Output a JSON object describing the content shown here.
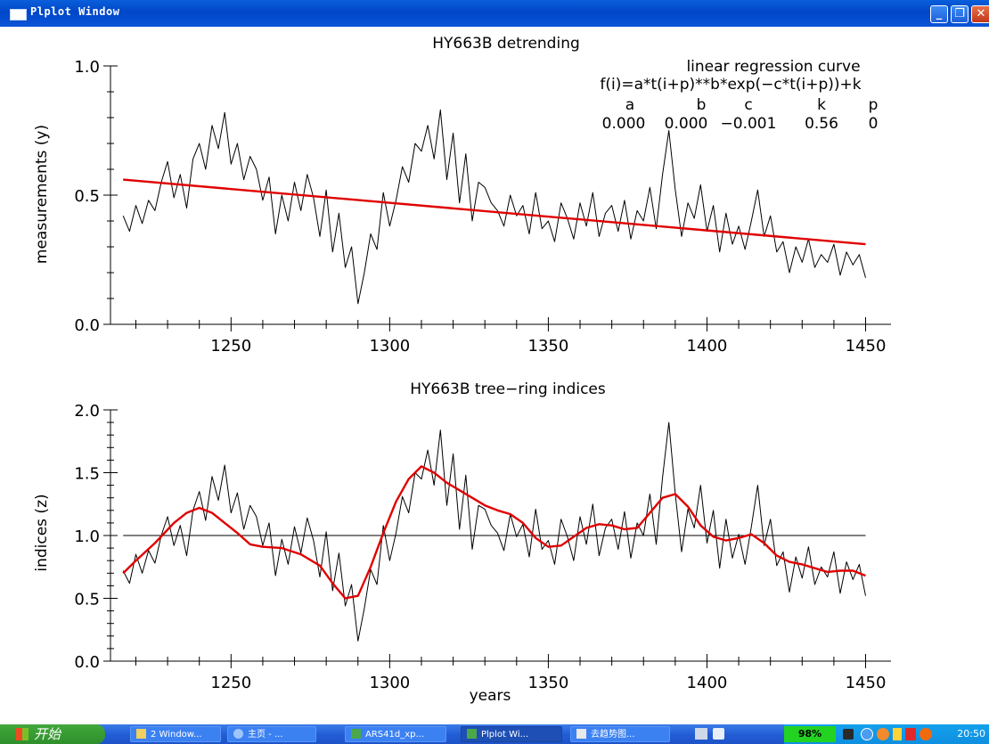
{
  "window": {
    "title": "Plplot Window",
    "buttons": {
      "minimize": "_",
      "maximize": "❐",
      "close": "✕"
    }
  },
  "chart_data": [
    {
      "type": "line",
      "title": "HY663B detrending",
      "xlabel": "",
      "ylabel": "measurements (y)",
      "xlim": [
        1212,
        1458
      ],
      "ylim": [
        0.0,
        1.0
      ],
      "xticks": [
        1250,
        1300,
        1350,
        1400,
        1450
      ],
      "yticks": [
        "0.0",
        "0.5",
        "1.0"
      ],
      "annotation": {
        "line1": "linear regression curve",
        "line2": "f(i)=a*t(i+p)**b*exp(−c*t(i+p))+k",
        "headers": [
          "a",
          "b",
          "c",
          "k",
          "p"
        ],
        "values": [
          "0.000",
          "0.000",
          "−0.001",
          "0.56",
          "0"
        ]
      },
      "series": [
        {
          "color": "#000000",
          "x": [
            1216,
            1218,
            1220,
            1222,
            1224,
            1226,
            1228,
            1230,
            1232,
            1234,
            1236,
            1238,
            1240,
            1242,
            1244,
            1246,
            1248,
            1250,
            1252,
            1254,
            1256,
            1258,
            1260,
            1262,
            1264,
            1266,
            1268,
            1270,
            1272,
            1274,
            1276,
            1278,
            1280,
            1282,
            1284,
            1286,
            1288,
            1290,
            1292,
            1294,
            1296,
            1298,
            1300,
            1302,
            1304,
            1306,
            1308,
            1310,
            1312,
            1314,
            1316,
            1318,
            1320,
            1322,
            1324,
            1326,
            1328,
            1330,
            1332,
            1334,
            1336,
            1338,
            1340,
            1342,
            1344,
            1346,
            1348,
            1350,
            1352,
            1354,
            1356,
            1358,
            1360,
            1362,
            1364,
            1366,
            1368,
            1370,
            1372,
            1374,
            1376,
            1378,
            1380,
            1382,
            1384,
            1386,
            1388,
            1390,
            1392,
            1394,
            1396,
            1398,
            1400,
            1402,
            1404,
            1406,
            1408,
            1410,
            1412,
            1414,
            1416,
            1418,
            1420,
            1422,
            1424,
            1426,
            1428,
            1430,
            1432,
            1434,
            1436,
            1438,
            1440,
            1442,
            1444,
            1446,
            1448,
            1450
          ],
          "y": [
            0.42,
            0.36,
            0.46,
            0.39,
            0.48,
            0.44,
            0.55,
            0.63,
            0.49,
            0.58,
            0.45,
            0.64,
            0.7,
            0.6,
            0.77,
            0.68,
            0.82,
            0.62,
            0.7,
            0.56,
            0.65,
            0.6,
            0.48,
            0.57,
            0.35,
            0.5,
            0.4,
            0.55,
            0.44,
            0.58,
            0.49,
            0.34,
            0.52,
            0.28,
            0.43,
            0.22,
            0.3,
            0.08,
            0.2,
            0.35,
            0.29,
            0.51,
            0.38,
            0.48,
            0.61,
            0.55,
            0.7,
            0.67,
            0.77,
            0.64,
            0.83,
            0.56,
            0.74,
            0.47,
            0.66,
            0.4,
            0.55,
            0.53,
            0.47,
            0.44,
            0.38,
            0.5,
            0.42,
            0.46,
            0.35,
            0.51,
            0.37,
            0.4,
            0.32,
            0.47,
            0.41,
            0.33,
            0.47,
            0.38,
            0.51,
            0.34,
            0.43,
            0.46,
            0.36,
            0.48,
            0.33,
            0.44,
            0.4,
            0.53,
            0.37,
            0.58,
            0.75,
            0.52,
            0.34,
            0.47,
            0.41,
            0.54,
            0.36,
            0.46,
            0.28,
            0.43,
            0.31,
            0.38,
            0.29,
            0.4,
            0.52,
            0.34,
            0.42,
            0.28,
            0.32,
            0.2,
            0.3,
            0.24,
            0.33,
            0.22,
            0.27,
            0.24,
            0.31,
            0.19,
            0.28,
            0.23,
            0.27,
            0.18
          ]
        },
        {
          "color": "#e00000",
          "x": [
            1216,
            1450
          ],
          "y": [
            0.56,
            0.31
          ]
        }
      ]
    },
    {
      "type": "line",
      "title": "HY663B tree−ring indices",
      "xlabel": "years",
      "ylabel": "indices (z)",
      "xlim": [
        1212,
        1458
      ],
      "ylim": [
        0.0,
        2.0
      ],
      "xticks": [
        1250,
        1300,
        1350,
        1400,
        1450
      ],
      "yticks": [
        "0.0",
        "0.5",
        "1.0",
        "1.5",
        "2.0"
      ],
      "reference_line": 1.0,
      "series": [
        {
          "color": "#000000",
          "x": [
            1216,
            1218,
            1220,
            1222,
            1224,
            1226,
            1228,
            1230,
            1232,
            1234,
            1236,
            1238,
            1240,
            1242,
            1244,
            1246,
            1248,
            1250,
            1252,
            1254,
            1256,
            1258,
            1260,
            1262,
            1264,
            1266,
            1268,
            1270,
            1272,
            1274,
            1276,
            1278,
            1280,
            1282,
            1284,
            1286,
            1288,
            1290,
            1292,
            1294,
            1296,
            1298,
            1300,
            1302,
            1304,
            1306,
            1308,
            1310,
            1312,
            1314,
            1316,
            1318,
            1320,
            1322,
            1324,
            1326,
            1328,
            1330,
            1332,
            1334,
            1336,
            1338,
            1340,
            1342,
            1344,
            1346,
            1348,
            1350,
            1352,
            1354,
            1356,
            1358,
            1360,
            1362,
            1364,
            1366,
            1368,
            1370,
            1372,
            1374,
            1376,
            1378,
            1380,
            1382,
            1384,
            1386,
            1388,
            1390,
            1392,
            1394,
            1396,
            1398,
            1400,
            1402,
            1404,
            1406,
            1408,
            1410,
            1412,
            1414,
            1416,
            1418,
            1420,
            1422,
            1424,
            1426,
            1428,
            1430,
            1432,
            1434,
            1436,
            1438,
            1440,
            1442,
            1444,
            1446,
            1448,
            1450
          ],
          "y": [
            0.72,
            0.62,
            0.85,
            0.7,
            0.88,
            0.78,
            1.0,
            1.15,
            0.92,
            1.08,
            0.84,
            1.2,
            1.35,
            1.12,
            1.47,
            1.28,
            1.56,
            1.18,
            1.34,
            1.05,
            1.24,
            1.15,
            0.92,
            1.1,
            0.68,
            0.97,
            0.77,
            1.07,
            0.86,
            1.14,
            0.96,
            0.67,
            1.03,
            0.56,
            0.86,
            0.44,
            0.61,
            0.16,
            0.42,
            0.73,
            0.61,
            1.08,
            0.8,
            1.02,
            1.31,
            1.18,
            1.5,
            1.45,
            1.68,
            1.4,
            1.84,
            1.24,
            1.65,
            1.05,
            1.48,
            0.89,
            1.24,
            1.21,
            1.08,
            1.02,
            0.88,
            1.17,
            0.99,
            1.09,
            0.83,
            1.21,
            0.89,
            0.96,
            0.77,
            1.13,
            0.99,
            0.8,
            1.15,
            0.93,
            1.25,
            0.84,
            1.06,
            1.13,
            0.89,
            1.19,
            0.82,
            1.1,
            1.0,
            1.33,
            0.93,
            1.46,
            1.9,
            1.33,
            0.87,
            1.21,
            1.06,
            1.4,
            0.94,
            1.2,
            0.74,
            1.13,
            0.82,
            1.01,
            0.77,
            1.07,
            1.4,
            0.92,
            1.13,
            0.76,
            0.87,
            0.55,
            0.83,
            0.66,
            0.91,
            0.61,
            0.75,
            0.67,
            0.87,
            0.54,
            0.79,
            0.65,
            0.77,
            0.52
          ]
        },
        {
          "color": "#e00000",
          "x": [
            1216,
            1220,
            1226,
            1232,
            1236,
            1240,
            1244,
            1248,
            1252,
            1256,
            1260,
            1266,
            1272,
            1278,
            1282,
            1286,
            1290,
            1294,
            1298,
            1302,
            1306,
            1310,
            1314,
            1318,
            1322,
            1326,
            1330,
            1334,
            1338,
            1342,
            1346,
            1350,
            1354,
            1358,
            1362,
            1366,
            1370,
            1374,
            1378,
            1382,
            1386,
            1390,
            1394,
            1398,
            1402,
            1406,
            1410,
            1414,
            1418,
            1422,
            1426,
            1430,
            1434,
            1438,
            1442,
            1446,
            1450
          ],
          "y": [
            0.7,
            0.8,
            0.94,
            1.1,
            1.18,
            1.22,
            1.18,
            1.1,
            1.02,
            0.93,
            0.91,
            0.9,
            0.85,
            0.76,
            0.62,
            0.5,
            0.52,
            0.75,
            1.02,
            1.27,
            1.45,
            1.55,
            1.5,
            1.42,
            1.36,
            1.3,
            1.24,
            1.2,
            1.17,
            1.1,
            0.98,
            0.91,
            0.92,
            0.99,
            1.06,
            1.09,
            1.08,
            1.05,
            1.06,
            1.18,
            1.3,
            1.33,
            1.23,
            1.08,
            0.99,
            0.96,
            0.98,
            1.01,
            0.94,
            0.84,
            0.79,
            0.77,
            0.74,
            0.71,
            0.72,
            0.72,
            0.68
          ]
        }
      ]
    }
  ],
  "taskbar": {
    "start_label": "开始",
    "tasks": [
      "2 Window...",
      "主页 - ...",
      "ARS41d_xp...",
      "Plplot Wi...",
      "去趋势图..."
    ],
    "battery": "98%",
    "clock": "20:50"
  }
}
